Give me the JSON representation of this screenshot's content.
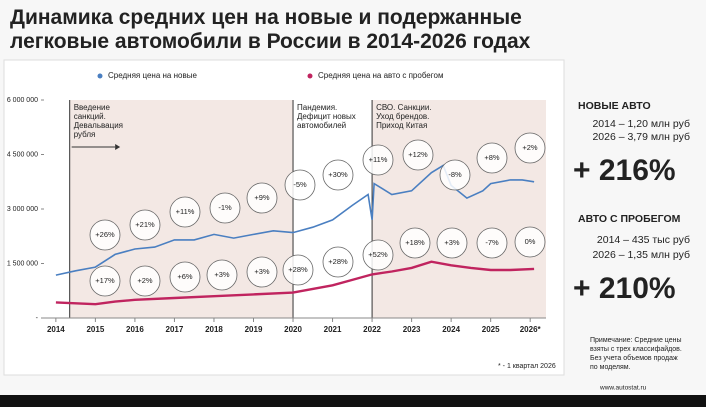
{
  "chart_data": {
    "type": "line",
    "title": "Динамика средних цен на новые и подержанные легковые автомобили в России в 2014-2026 годах",
    "series": [
      {
        "name": "Средняя цена на новые",
        "color": "#4a7fc1",
        "x": [
          2014.0,
          2014.5,
          2015.0,
          2015.5,
          2016.0,
          2016.5,
          2017.0,
          2017.5,
          2018.0,
          2018.5,
          2019.0,
          2019.5,
          2020.0,
          2020.5,
          2021.0,
          2021.5,
          2021.9,
          2022.0,
          2022.05,
          2022.5,
          2023.0,
          2023.5,
          2023.8,
          2024.0,
          2024.4,
          2024.8,
          2025.0,
          2025.5,
          2025.8,
          2026.1
        ],
        "values": [
          1180000,
          1300000,
          1400000,
          1750000,
          1900000,
          1950000,
          2150000,
          2150000,
          2300000,
          2200000,
          2300000,
          2400000,
          2350000,
          2500000,
          2700000,
          3100000,
          3400000,
          2700000,
          3700000,
          3400000,
          3500000,
          4000000,
          4200000,
          3650000,
          3300000,
          3500000,
          3700000,
          3800000,
          3800000,
          3750000
        ]
      },
      {
        "name": "Средняя  цена на авто с пробегом",
        "color": "#c0245f",
        "x": [
          2014.0,
          2015.0,
          2015.5,
          2016.0,
          2017.0,
          2018.0,
          2019.0,
          2020.0,
          2021.0,
          2021.5,
          2022.0,
          2022.5,
          2023.0,
          2023.5,
          2024.0,
          2024.5,
          2025.0,
          2025.5,
          2026.1
        ],
        "values": [
          430000,
          380000,
          450000,
          500000,
          550000,
          600000,
          650000,
          700000,
          900000,
          1050000,
          1200000,
          1280000,
          1380000,
          1550000,
          1450000,
          1380000,
          1320000,
          1320000,
          1350000
        ]
      }
    ],
    "xlim": [
      2013.7,
      2026.4
    ],
    "xticks": [
      2014,
      2015,
      2016,
      2017,
      2018,
      2019,
      2020,
      2021,
      2022,
      2023,
      2024,
      2025,
      {
        "value": 2026,
        "label": "2026*"
      }
    ],
    "ylim": [
      0,
      6000000
    ],
    "yticks": [
      {
        "value": 0,
        "label": "-"
      },
      {
        "value": 1500000,
        "label": "1 500 000"
      },
      {
        "value": 3000000,
        "label": "3 000 000"
      },
      {
        "value": 4500000,
        "label": "4 500 000"
      },
      {
        "value": 6000000,
        "label": "6 000 000"
      }
    ],
    "grid": false,
    "periods": [
      [
        "Введение",
        "санкций.",
        "Девальвация",
        "рубля"
      ],
      [
        "Пандемия.",
        "Дефицит новых",
        "автомобилей"
      ],
      [
        "СВО. Санкции.",
        "Уход брендов.",
        "Приход Китая"
      ]
    ],
    "annotations": {
      "new": [
        "+26%",
        "+21%",
        "+11%",
        "-1%",
        "+9%",
        "-5%",
        "+30%",
        "+11%",
        "+12%",
        "-8%",
        "+8%",
        "+2%"
      ],
      "used": [
        "+17%",
        "+2%",
        "+6%",
        "+3%",
        "+3%",
        "+28%",
        "+28%",
        "+52%",
        "+18%",
        "+3%",
        "-7%",
        "0%"
      ]
    },
    "summary": {
      "new_title": "НОВЫЕ АВТО",
      "new_lines": [
        "2014 – 1,20 млн руб",
        "2026 – 3,79 млн руб"
      ],
      "new_change": "+ 216%",
      "used_title": "АВТО С ПРОБЕГОМ",
      "used_lines": [
        "2014 – 435 тыс руб",
        "2026 – 1,35 млн руб"
      ],
      "used_change": "+ 210%"
    },
    "note": [
      "Примечание: Средние цены",
      "взяты с трех классифайдов.",
      "Без учета объемов продаж",
      "по моделям."
    ],
    "footnote": "* - 1 квартал 2026",
    "source": "www.autostat.ru"
  }
}
